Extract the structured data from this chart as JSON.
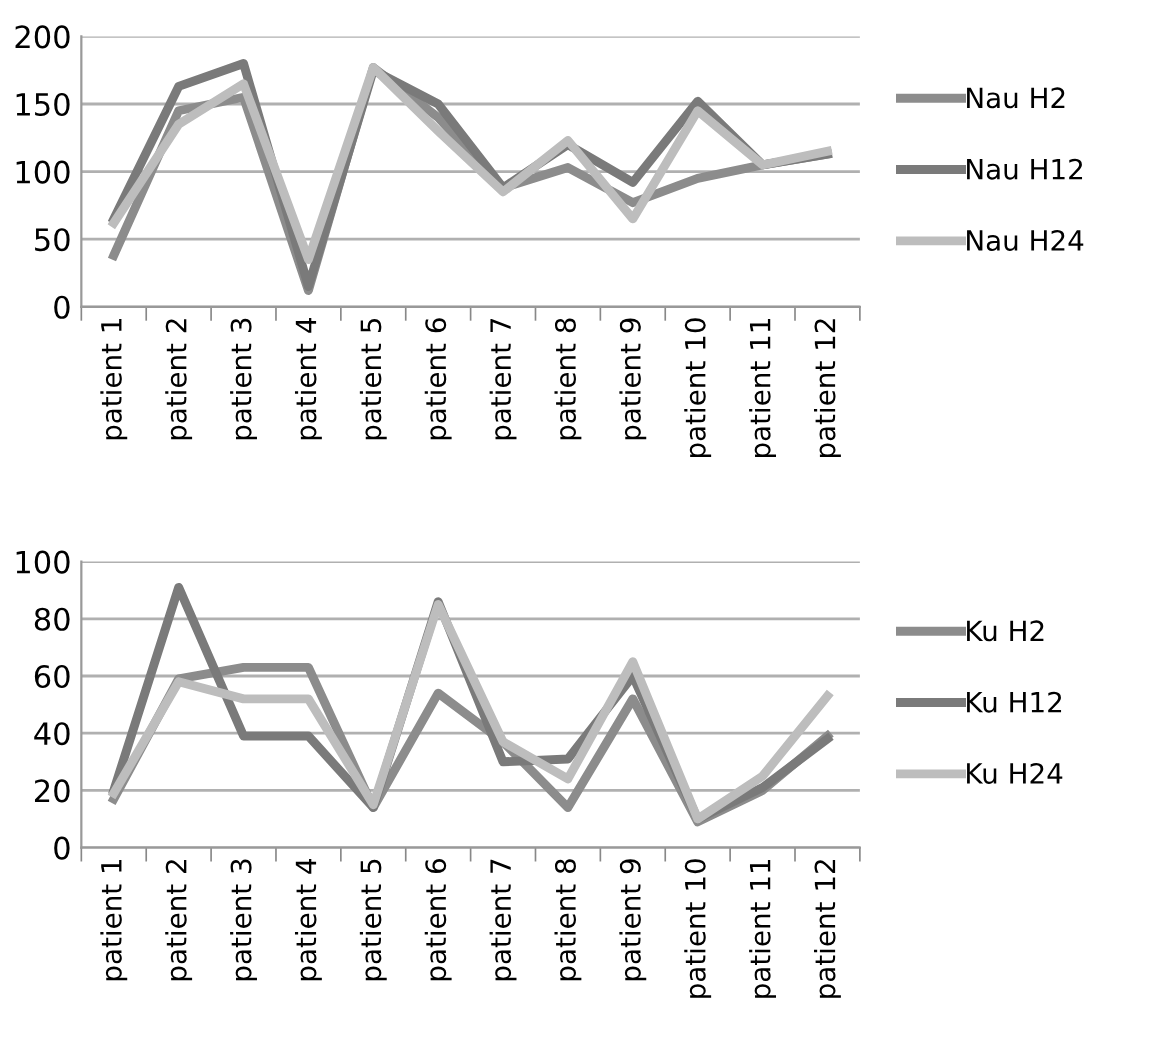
{
  "chart_data": [
    {
      "type": "line",
      "categories": [
        "patient 1",
        "patient 2",
        "patient 3",
        "patient 4",
        "patient 5",
        "patient 6",
        "patient 7",
        "patient 8",
        "patient 9",
        "patient 10",
        "patient 11",
        "patient 12"
      ],
      "series": [
        {
          "name": "Nau H2",
          "color": "#8c8c8c",
          "values": [
            38,
            145,
            155,
            12,
            177,
            140,
            88,
            103,
            77,
            95,
            105,
            113
          ]
        },
        {
          "name": "Nau H12",
          "color": "#7a7a7a",
          "values": [
            65,
            163,
            180,
            15,
            175,
            150,
            88,
            120,
            92,
            152,
            105,
            113
          ]
        },
        {
          "name": "Nau H24",
          "color": "#bdbdbd",
          "values": [
            62,
            135,
            165,
            35,
            177,
            130,
            85,
            123,
            65,
            145,
            105,
            115
          ]
        }
      ],
      "ylim": [
        0,
        200
      ],
      "yticks": [
        0,
        50,
        100,
        150,
        200
      ],
      "grid": "y",
      "legend": "right",
      "marker": "none",
      "line_style": "solid"
    },
    {
      "type": "line",
      "categories": [
        "patient 1",
        "patient 2",
        "patient 3",
        "patient 4",
        "patient 5",
        "patient 6",
        "patient 7",
        "patient 8",
        "patient 9",
        "patient 10",
        "patient 11",
        "patient 12"
      ],
      "series": [
        {
          "name": "Ku H2",
          "color": "#8c8c8c",
          "values": [
            17,
            59,
            63,
            63,
            14,
            54,
            37,
            14,
            52,
            9,
            20,
            39
          ]
        },
        {
          "name": "Ku H12",
          "color": "#7a7a7a",
          "values": [
            20,
            91,
            39,
            39,
            14,
            86,
            30,
            31,
            60,
            10,
            21,
            38
          ]
        },
        {
          "name": "Ku H24",
          "color": "#bdbdbd",
          "values": [
            19,
            58,
            52,
            52,
            15,
            85,
            37,
            24,
            65,
            10,
            25,
            53
          ]
        }
      ],
      "ylim": [
        0,
        100
      ],
      "yticks": [
        0,
        20,
        40,
        60,
        80,
        100
      ],
      "grid": "y",
      "legend": "right",
      "marker": "none",
      "line_style": "solid"
    }
  ]
}
